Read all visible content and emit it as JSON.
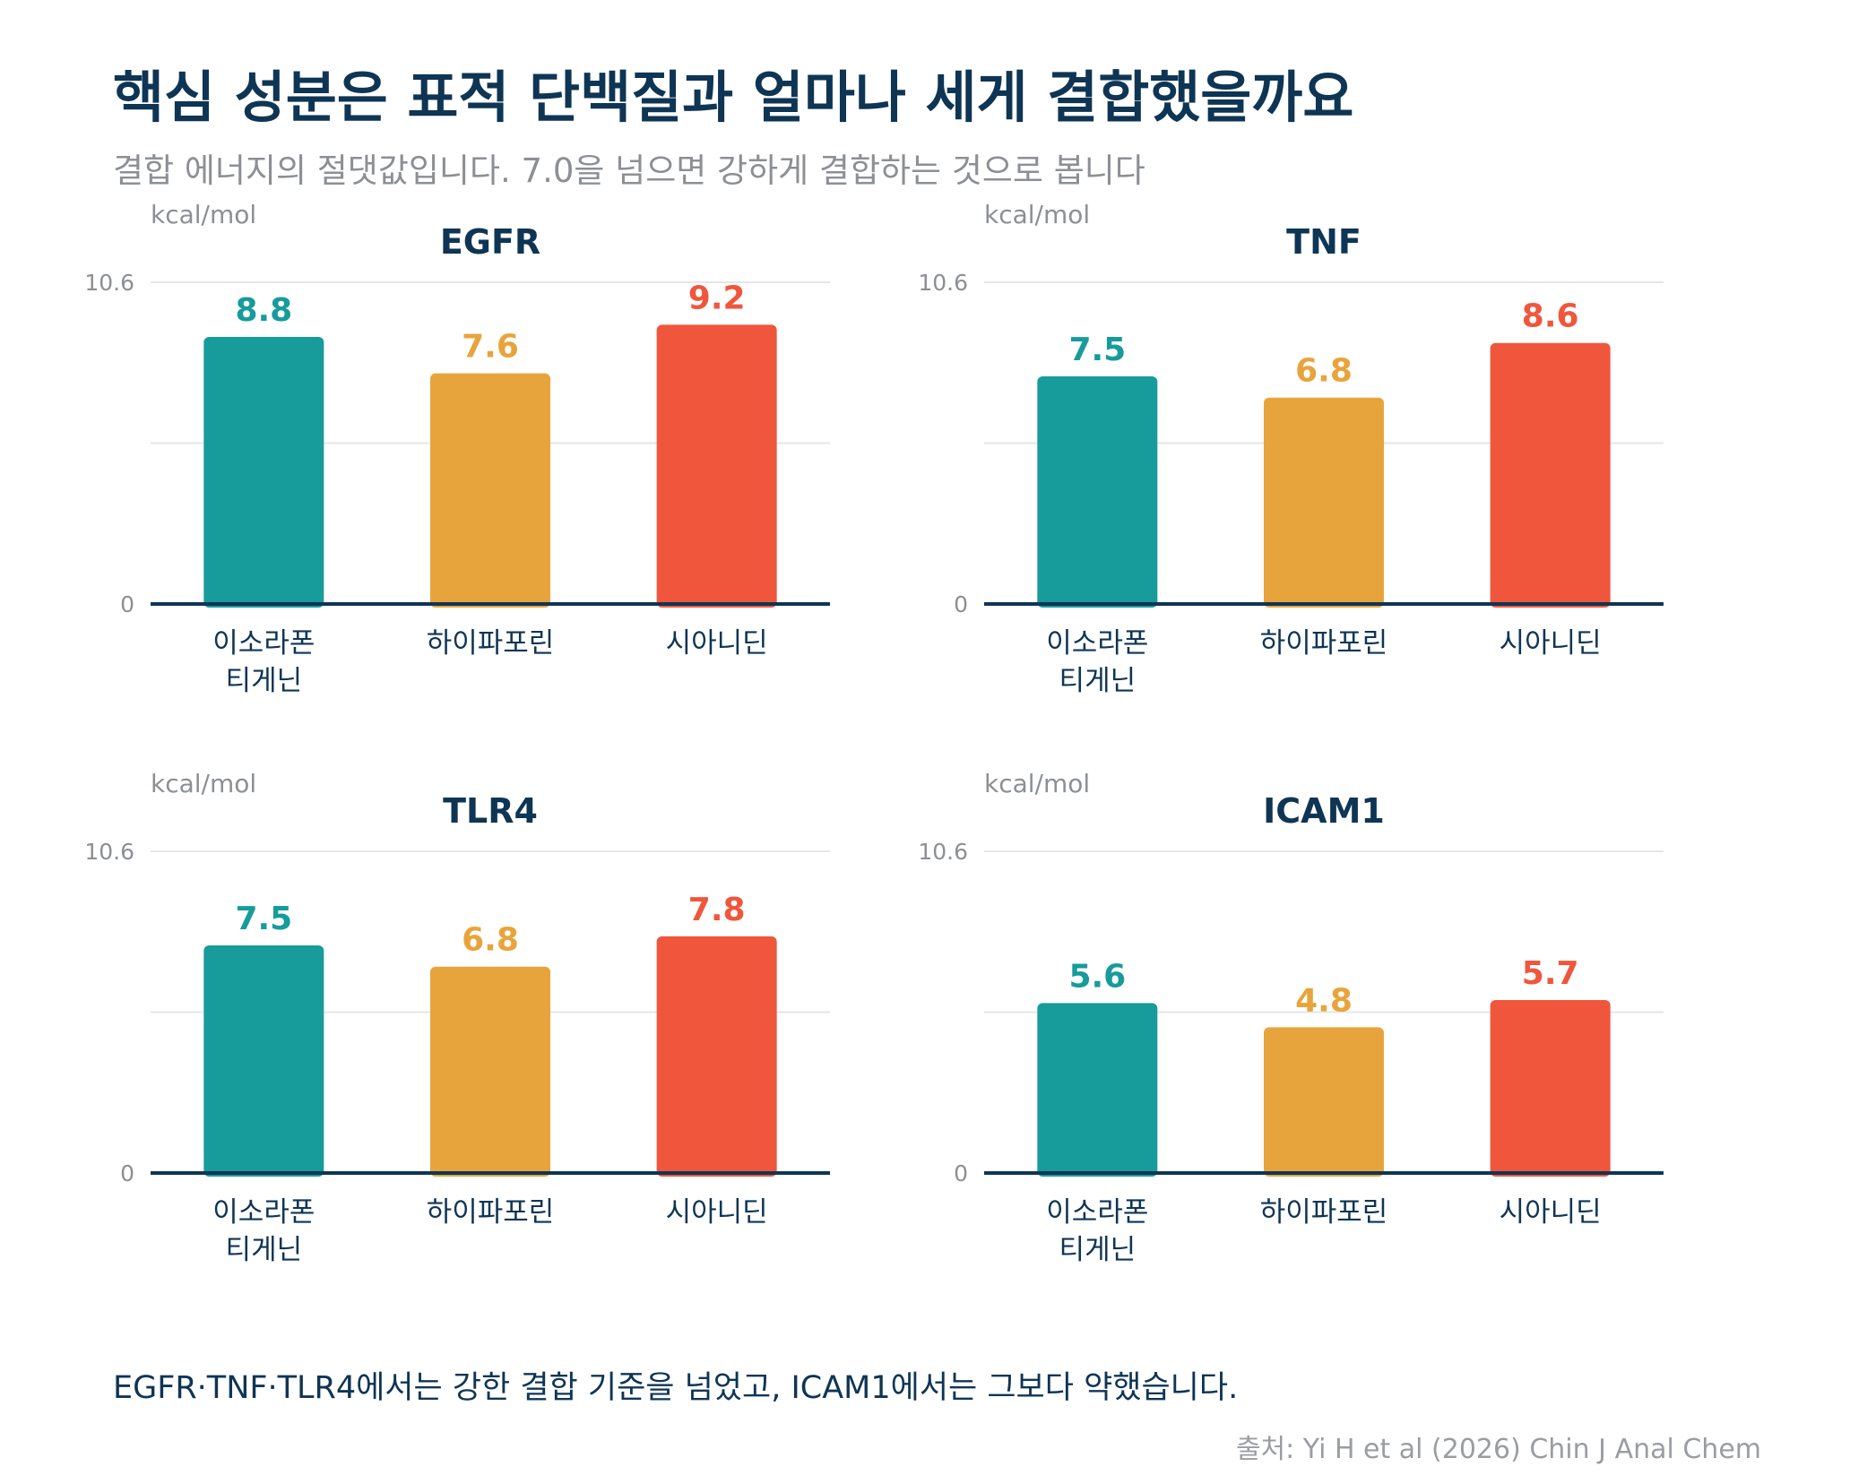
{
  "header": {
    "title": "핵심 성분은 표적 단백질과 얼마나 세게 결합했을까요",
    "subtitle": "결합 에너지의 절댓값입니다. 7.0을 넘으면 강하게 결합하는 것으로 봅니다"
  },
  "colors": {
    "series": [
      "#179b9b",
      "#e8a43c",
      "#f0563c"
    ],
    "axis": "#0f3554",
    "grid": "#e6e6e6",
    "muted": "#8c8f93"
  },
  "chart_data": [
    {
      "type": "bar",
      "title": "EGFR",
      "ylabel": "kcal/mol",
      "ylim": [
        0,
        10.6
      ],
      "yticks": [
        "0",
        "10.6"
      ],
      "categories": [
        [
          "이소라폰",
          "티게닌"
        ],
        [
          "하이파포린"
        ],
        [
          "시아니딘"
        ]
      ],
      "values": [
        8.8,
        7.6,
        9.2
      ],
      "value_labels": [
        "8.8",
        "7.6",
        "9.2"
      ],
      "grid": true
    },
    {
      "type": "bar",
      "title": "TNF",
      "ylabel": "kcal/mol",
      "ylim": [
        0,
        10.6
      ],
      "yticks": [
        "0",
        "10.6"
      ],
      "categories": [
        [
          "이소라폰",
          "티게닌"
        ],
        [
          "하이파포린"
        ],
        [
          "시아니딘"
        ]
      ],
      "values": [
        7.5,
        6.8,
        8.6
      ],
      "value_labels": [
        "7.5",
        "6.8",
        "8.6"
      ],
      "grid": true
    },
    {
      "type": "bar",
      "title": "TLR4",
      "ylabel": "kcal/mol",
      "ylim": [
        0,
        10.6
      ],
      "yticks": [
        "0",
        "10.6"
      ],
      "categories": [
        [
          "이소라폰",
          "티게닌"
        ],
        [
          "하이파포린"
        ],
        [
          "시아니딘"
        ]
      ],
      "values": [
        7.5,
        6.8,
        7.8
      ],
      "value_labels": [
        "7.5",
        "6.8",
        "7.8"
      ],
      "grid": true
    },
    {
      "type": "bar",
      "title": "ICAM1",
      "ylabel": "kcal/mol",
      "ylim": [
        0,
        10.6
      ],
      "yticks": [
        "0",
        "10.6"
      ],
      "categories": [
        [
          "이소라폰",
          "티게닌"
        ],
        [
          "하이파포린"
        ],
        [
          "시아니딘"
        ]
      ],
      "values": [
        5.6,
        4.8,
        5.7
      ],
      "value_labels": [
        "5.6",
        "4.8",
        "5.7"
      ],
      "grid": true
    }
  ],
  "footer": {
    "note": "EGFR·TNF·TLR4에서는 강한 결합 기준을 넘었고, ICAM1에서는 그보다 약했습니다.",
    "source": "출처: Yi H et al (2026) Chin J Anal Chem"
  }
}
